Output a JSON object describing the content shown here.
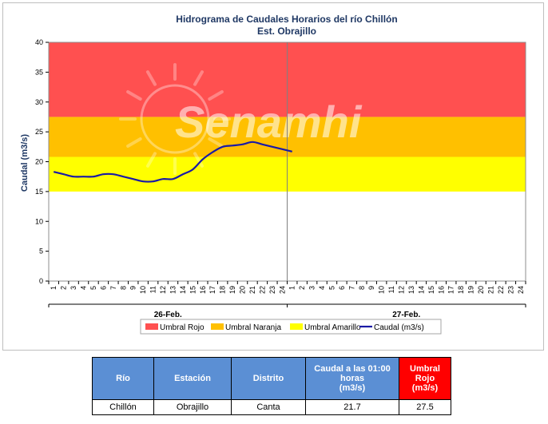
{
  "chart_data": {
    "type": "line",
    "title": "Hidrograma de Caudales Horarios del río Chillón",
    "subtitle": "Est. Obrajillo",
    "ylabel": "Caudal  (m3/s)",
    "ylim": [
      0,
      40
    ],
    "yticks": [
      "0",
      "5",
      "10",
      "15",
      "20",
      "25",
      "30",
      "35",
      "40"
    ],
    "xticks": [
      "1",
      "2",
      "3",
      "4",
      "5",
      "6",
      "7",
      "8",
      "9",
      "10",
      "11",
      "12",
      "13",
      "14",
      "15",
      "16",
      "17",
      "18",
      "19",
      "20",
      "21",
      "22",
      "23",
      "24",
      "1",
      "2",
      "3",
      "4",
      "5",
      "6",
      "7",
      "8",
      "9",
      "10",
      "11",
      "12",
      "13",
      "14",
      "15",
      "16",
      "17",
      "18",
      "19",
      "20",
      "21",
      "22",
      "23",
      "24"
    ],
    "date_labels": [
      "26-Feb.",
      "27-Feb."
    ],
    "bands": [
      {
        "name": "Umbral Rojo",
        "from": 27.5,
        "to": 40,
        "color": "#ff5050"
      },
      {
        "name": "Umbral Naranja",
        "from": 20.8,
        "to": 27.5,
        "color": "#ffc000"
      },
      {
        "name": "Umbral Amarillo",
        "from": 15,
        "to": 20.8,
        "color": "#ffff00"
      }
    ],
    "series": [
      {
        "name": "Caudal (m3/s)",
        "color": "#1a1aa6",
        "x": [
          1,
          2,
          3,
          4,
          5,
          6,
          7,
          8,
          9,
          10,
          11,
          12,
          13,
          14,
          15,
          16,
          17,
          18,
          19,
          20,
          21,
          22,
          23,
          24,
          25
        ],
        "values": [
          18.3,
          17.9,
          17.5,
          17.5,
          17.5,
          17.9,
          17.9,
          17.5,
          17.1,
          16.7,
          16.7,
          17.1,
          17.1,
          17.9,
          18.7,
          20.4,
          21.6,
          22.5,
          22.7,
          22.9,
          23.3,
          22.9,
          22.5,
          22.1,
          21.7
        ]
      }
    ],
    "grid": false,
    "legend_position": "bottom"
  },
  "legend": [
    {
      "label": "Umbral Rojo",
      "color": "#ff5050",
      "kind": "box"
    },
    {
      "label": "Umbral Naranja",
      "color": "#ffc000",
      "kind": "box"
    },
    {
      "label": "Umbral Amarillo",
      "color": "#ffff00",
      "kind": "box"
    },
    {
      "label": "Caudal (m3/s)",
      "color": "#1a1aa6",
      "kind": "line"
    }
  ],
  "watermark": "Senamhi",
  "table": {
    "headers": {
      "rio": "Río",
      "estacion": "Estación",
      "distrito": "Distrito",
      "caudal": "Caudal a las 01:00 horas",
      "caudal_unit": "(m3/s)",
      "umbral": "Umbral Rojo",
      "umbral_unit": "(m3/s)"
    },
    "row": {
      "rio": "Chillón",
      "estacion": "Obrajillo",
      "distrito": "Canta",
      "caudal": "21.7",
      "umbral": "27.5"
    }
  }
}
